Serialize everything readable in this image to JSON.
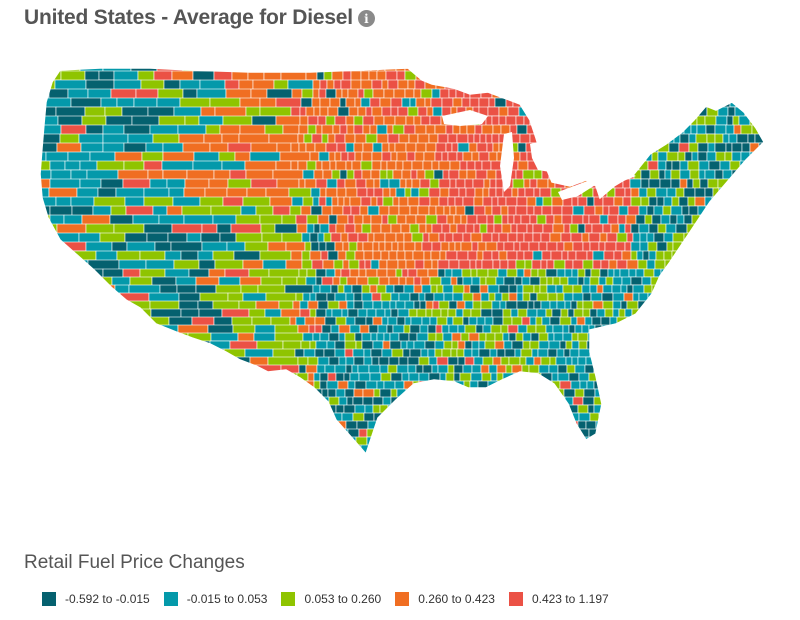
{
  "header": {
    "title": "United States - Average for Diesel",
    "info_icon": "info-icon"
  },
  "map": {
    "region": "Contiguous United States",
    "unit_level": "county",
    "metric": "Diesel average price change"
  },
  "legend": {
    "title": "Retail Fuel Price Changes",
    "items": [
      {
        "label": "-0.592 to -0.015",
        "color": "#05616f"
      },
      {
        "label": "-0.015 to 0.053",
        "color": "#0499aa"
      },
      {
        "label": "0.053 to 0.260",
        "color": "#8fc400"
      },
      {
        "label": "0.260 to 0.423",
        "color": "#f06e22"
      },
      {
        "label": "0.423 to 1.197",
        "color": "#eb5145"
      }
    ]
  }
}
